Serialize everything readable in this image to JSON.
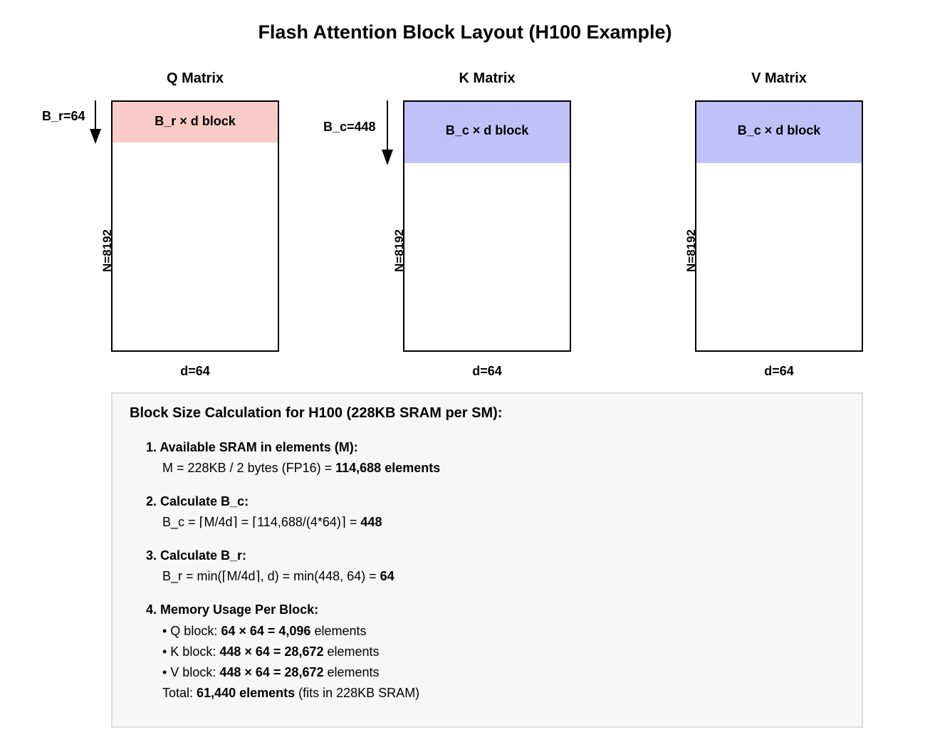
{
  "title": "Flash Attention Block Layout (H100 Example)",
  "matrices": {
    "q": {
      "heading": "Q Matrix",
      "block_label": "B_r × d block",
      "block_color": "#f8cbc6",
      "n_label": "N=8192",
      "d_label": "d=64",
      "dim_label": "B_r=64"
    },
    "k": {
      "heading": "K Matrix",
      "block_label": "B_c × d block",
      "block_color": "#c0c0f8",
      "n_label": "N=8192",
      "d_label": "d=64",
      "dim_label": "B_c=448"
    },
    "v": {
      "heading": "V Matrix",
      "block_label": "B_c × d block",
      "block_color": "#c0c0f8",
      "n_label": "N=8192",
      "d_label": "d=64"
    }
  },
  "calc": {
    "title": "Block Size Calculation for H100 (228KB SRAM per SM):",
    "step1": {
      "heading": "1. Available SRAM in elements (M):",
      "line_prefix": "M = 228KB / 2 bytes (FP16) = ",
      "line_bold": "114,688 elements"
    },
    "step2": {
      "heading": "2. Calculate B_c:",
      "line_prefix": "B_c = ⌈M/4d⌉ = ⌈114,688/(4*64)⌉ = ",
      "line_bold": "448"
    },
    "step3": {
      "heading": "3. Calculate B_r:",
      "line_prefix": "B_r = min(⌈M/4d⌉, d) = min(448, 64) = ",
      "line_bold": "64"
    },
    "step4": {
      "heading": "4. Memory Usage Per Block:",
      "q_prefix": "• Q block: ",
      "q_bold": "64 × 64 = 4,096",
      "q_suffix": " elements",
      "k_prefix": "• K block: ",
      "k_bold": "448 × 64 = 28,672",
      "k_suffix": " elements",
      "v_prefix": "• V block: ",
      "v_bold": "448 × 64 = 28,672",
      "v_suffix": " elements",
      "total_prefix": "Total: ",
      "total_bold": "61,440 elements",
      "total_suffix": " (fits in 228KB SRAM)"
    }
  }
}
